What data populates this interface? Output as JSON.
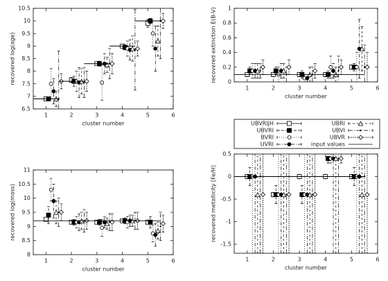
{
  "legend": {
    "entries": [
      {
        "name": "UBVRIJH",
        "marker": "square-open",
        "dash": ""
      },
      {
        "name": "UBVRI",
        "marker": "square-filled",
        "dash": "4 2"
      },
      {
        "name": "BVRI",
        "marker": "circle-open",
        "dash": "1 2"
      },
      {
        "name": "UVRI",
        "marker": "circle-filled",
        "dash": "5 2 1 2"
      },
      {
        "name": "UBRI",
        "marker": "triangle-open",
        "dash": "3 3"
      },
      {
        "name": "UBVI",
        "marker": "none",
        "dash": "6 2 1 2"
      },
      {
        "name": "UBVR",
        "marker": "diamond-open",
        "dash": "2 1"
      },
      {
        "name": "input values",
        "marker": "line",
        "dash": ""
      }
    ]
  },
  "chart_data": [
    {
      "type": "errorbar",
      "y_label": "recovered log(age)",
      "x_label": "cluster number",
      "x": [
        1,
        2,
        3,
        4,
        5
      ],
      "xlim": [
        0.5,
        6
      ],
      "xticks": [
        1,
        2,
        3,
        4,
        5,
        6
      ],
      "ylim": [
        6.5,
        10.5
      ],
      "yticks": [
        6.5,
        7,
        7.5,
        8,
        8.5,
        9,
        9.5,
        10,
        10.5
      ],
      "series": [
        {
          "values": [
            6.9,
            7.65,
            8.3,
            9.0,
            9.9
          ],
          "errors": [
            0.05,
            0.1,
            0.05,
            0.05,
            0.15
          ]
        },
        {
          "values": [
            6.9,
            7.6,
            8.3,
            8.95,
            10.0
          ],
          "errors": [
            0.05,
            0.2,
            0.1,
            0.1,
            0.1
          ]
        },
        {
          "values": [
            7.5,
            7.6,
            7.55,
            8.9,
            9.5
          ],
          "errors": [
            0.6,
            0.4,
            0.7,
            0.3,
            0.5
          ]
        },
        {
          "values": [
            7.2,
            7.55,
            8.3,
            8.85,
            8.9
          ],
          "errors": [
            0.5,
            0.6,
            0.4,
            0.4,
            0.9
          ]
        },
        {
          "values": [
            6.9,
            7.6,
            8.25,
            8.9,
            9.2
          ],
          "errors": [
            0.3,
            0.5,
            0.3,
            0.5,
            0.6
          ]
        },
        {
          "values": [
            6.9,
            7.55,
            8.3,
            8.85,
            10.0
          ],
          "errors": [
            1.9,
            0.6,
            0.6,
            1.6,
            1.5
          ]
        },
        {
          "values": [
            7.6,
            7.6,
            8.3,
            8.9,
            10.0
          ],
          "errors": [
            0.3,
            0.4,
            0.4,
            0.3,
            0.3
          ]
        },
        {
          "values": [
            6.9,
            7.6,
            8.3,
            9.0,
            10.0
          ]
        }
      ]
    },
    {
      "type": "errorbar",
      "y_label": "recovered extinction E(B-V)",
      "x_label": "cluster number",
      "x": [
        1,
        2,
        3,
        4,
        5
      ],
      "xlim": [
        0.5,
        6
      ],
      "xticks": [
        1,
        2,
        3,
        4,
        5,
        6
      ],
      "ylim": [
        0,
        1
      ],
      "yticks": [
        0,
        0.2,
        0.4,
        0.6,
        0.8,
        1
      ],
      "series": [
        {
          "values": [
            0.1,
            0.1,
            0.1,
            0.1,
            0.2
          ],
          "errors": [
            0.03,
            0.03,
            0.03,
            0.03,
            0.03
          ]
        },
        {
          "values": [
            0.15,
            0.15,
            0.1,
            0.1,
            0.2
          ],
          "errors": [
            0.05,
            0.05,
            0.05,
            0.05,
            0.05
          ]
        },
        {
          "values": [
            0.15,
            0.1,
            0.05,
            0.2,
            0.2
          ],
          "errors": [
            0.1,
            0.1,
            0.05,
            0.15,
            0.2
          ]
        },
        {
          "values": [
            0.15,
            0.15,
            0.05,
            0.15,
            0.45
          ],
          "errors": [
            0.1,
            0.1,
            0.05,
            0.1,
            0.4
          ]
        },
        {
          "values": [
            0.15,
            0.15,
            0.1,
            0.1,
            0.45
          ],
          "errors": [
            0.1,
            0.1,
            0.1,
            0.1,
            0.3
          ]
        },
        {
          "values": [
            0.15,
            0.1,
            0.1,
            0.15,
            0.2
          ],
          "errors": [
            0.1,
            0.1,
            0.1,
            0.2,
            0.3
          ]
        },
        {
          "values": [
            0.2,
            0.2,
            0.15,
            0.2,
            0.2
          ],
          "errors": [
            0.1,
            0.1,
            0.1,
            0.1,
            0.2
          ]
        },
        {
          "values": [
            0.1,
            0.1,
            0.1,
            0.1,
            0.1
          ]
        }
      ]
    },
    {
      "type": "errorbar",
      "y_label": "recovered log(mass)",
      "x_label": "cluster number",
      "x": [
        1,
        2,
        3,
        4,
        5
      ],
      "xlim": [
        0.5,
        6
      ],
      "xticks": [
        1,
        2,
        3,
        4,
        5,
        6
      ],
      "ylim": [
        8,
        11
      ],
      "yticks": [
        8,
        8.5,
        9,
        9.5,
        10,
        10.5,
        11
      ],
      "series": [
        {
          "values": [
            9.25,
            9.15,
            9.15,
            9.2,
            9.15
          ],
          "errors": [
            0.05,
            0.05,
            0.05,
            0.05,
            0.05
          ]
        },
        {
          "values": [
            9.4,
            9.15,
            9.15,
            9.2,
            9.15
          ],
          "errors": [
            0.3,
            0.1,
            0.1,
            0.1,
            0.2
          ]
        },
        {
          "values": [
            10.3,
            9.15,
            8.95,
            9.15,
            8.75
          ],
          "errors": [
            0.4,
            0.2,
            0.3,
            0.2,
            0.3
          ]
        },
        {
          "values": [
            9.9,
            9.15,
            9.15,
            9.2,
            8.7
          ],
          "errors": [
            0.6,
            0.3,
            0.2,
            0.2,
            0.4
          ]
        },
        {
          "values": [
            9.5,
            9.2,
            9.1,
            9.2,
            8.85
          ],
          "errors": [
            0.4,
            0.3,
            0.2,
            0.2,
            0.3
          ]
        },
        {
          "values": [
            9.5,
            9.2,
            9.15,
            9.2,
            9.0
          ],
          "errors": [
            0.5,
            0.4,
            0.3,
            0.3,
            0.5
          ]
        },
        {
          "values": [
            9.5,
            9.2,
            9.15,
            9.2,
            9.1
          ],
          "errors": [
            0.3,
            0.3,
            0.3,
            0.3,
            0.3
          ]
        },
        {
          "values": [
            9.2,
            9.2,
            9.2,
            9.2,
            9.2
          ]
        }
      ]
    },
    {
      "type": "errorbar",
      "y_label": "recovered metallicity [Fe/H]",
      "x_label": "cluster number",
      "x": [
        1,
        2,
        3,
        4,
        5
      ],
      "xlim": [
        0.5,
        6
      ],
      "xticks": [
        1,
        2,
        3,
        4,
        5,
        6
      ],
      "ylim": [
        -1.7,
        0.5
      ],
      "yticks": [
        -1.5,
        -1,
        -0.5,
        0,
        0.5
      ],
      "series": [
        {
          "values": [
            0,
            -0.4,
            0,
            0,
            0
          ],
          "errors": [
            0.05,
            0.05,
            0.05,
            0.05,
            0.05
          ]
        },
        {
          "values": [
            0,
            -0.4,
            -0.4,
            0.4,
            0
          ],
          "errors": [
            0.2,
            0.2,
            0.2,
            0.1,
            0.2
          ]
        },
        {
          "values": [
            0,
            -0.4,
            -0.4,
            0.4,
            0
          ],
          "errors": [
            1.7,
            1.3,
            1.3,
            0.1,
            1.7
          ]
        },
        {
          "values": [
            0,
            -0.4,
            -0.4,
            0.4,
            0
          ],
          "errors": [
            1.7,
            1.3,
            1.3,
            2.1,
            1.7
          ]
        },
        {
          "values": [
            -0.4,
            -0.4,
            -0.4,
            0.4,
            -0.4
          ],
          "errors": [
            1.3,
            1.3,
            1.3,
            2.1,
            1.3
          ]
        },
        {
          "values": [
            0,
            -0.4,
            -0.4,
            0.4,
            0
          ],
          "errors": [
            1.7,
            1.3,
            1.3,
            2.1,
            1.7
          ]
        },
        {
          "values": [
            -0.4,
            -0.4,
            -0.4,
            0.4,
            -0.4
          ],
          "errors": [
            1.3,
            1.3,
            1.3,
            0.1,
            1.3
          ]
        },
        {
          "values": [
            0,
            0,
            0,
            0,
            0
          ]
        }
      ]
    }
  ]
}
